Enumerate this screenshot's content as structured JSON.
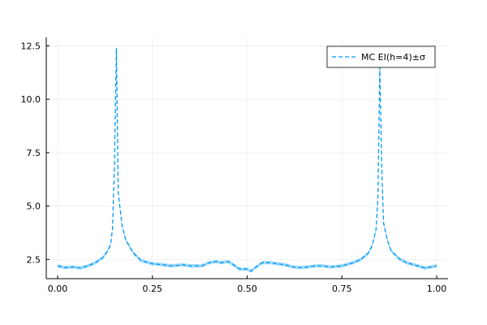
{
  "chart_data": {
    "type": "line",
    "title": "",
    "xlabel": "",
    "ylabel": "",
    "xlim": [
      -0.03,
      1.03
    ],
    "ylim": [
      1.6,
      12.9
    ],
    "x_ticks": [
      0.0,
      0.25,
      0.5,
      0.75,
      1.0
    ],
    "x_tick_labels": [
      "0.00",
      "0.25",
      "0.50",
      "0.75",
      "1.00"
    ],
    "y_ticks": [
      2.5,
      5.0,
      7.5,
      10.0,
      12.5
    ],
    "y_tick_labels": [
      "2.5",
      "5.0",
      "7.5",
      "10.0",
      "12.5"
    ],
    "grid": true,
    "legend_position": "top-right",
    "series": [
      {
        "name": "MC EI(h=4)±σ",
        "color": "#009AFA",
        "line_style": "dashed",
        "band_sigma": 0.08,
        "x": [
          0.0,
          0.02,
          0.04,
          0.06,
          0.08,
          0.1,
          0.12,
          0.13,
          0.14,
          0.145,
          0.15,
          0.155,
          0.16,
          0.17,
          0.18,
          0.2,
          0.22,
          0.25,
          0.28,
          0.3,
          0.33,
          0.35,
          0.38,
          0.4,
          0.42,
          0.43,
          0.45,
          0.46,
          0.48,
          0.5,
          0.51,
          0.52,
          0.54,
          0.56,
          0.58,
          0.6,
          0.62,
          0.64,
          0.66,
          0.68,
          0.7,
          0.72,
          0.75,
          0.78,
          0.8,
          0.82,
          0.83,
          0.84,
          0.845,
          0.85,
          0.855,
          0.86,
          0.87,
          0.88,
          0.9,
          0.92,
          0.95,
          0.97,
          1.0
        ],
        "values": [
          2.2,
          2.12,
          2.15,
          2.1,
          2.2,
          2.35,
          2.6,
          2.85,
          3.2,
          4.0,
          7.0,
          12.4,
          5.6,
          4.1,
          3.4,
          2.8,
          2.45,
          2.3,
          2.25,
          2.2,
          2.25,
          2.2,
          2.2,
          2.35,
          2.4,
          2.35,
          2.4,
          2.3,
          2.05,
          2.05,
          1.95,
          2.1,
          2.35,
          2.35,
          2.3,
          2.25,
          2.15,
          2.12,
          2.15,
          2.2,
          2.2,
          2.15,
          2.2,
          2.35,
          2.5,
          2.8,
          3.15,
          3.9,
          5.4,
          11.5,
          6.9,
          4.2,
          3.4,
          2.9,
          2.55,
          2.35,
          2.2,
          2.1,
          2.2
        ]
      }
    ]
  }
}
